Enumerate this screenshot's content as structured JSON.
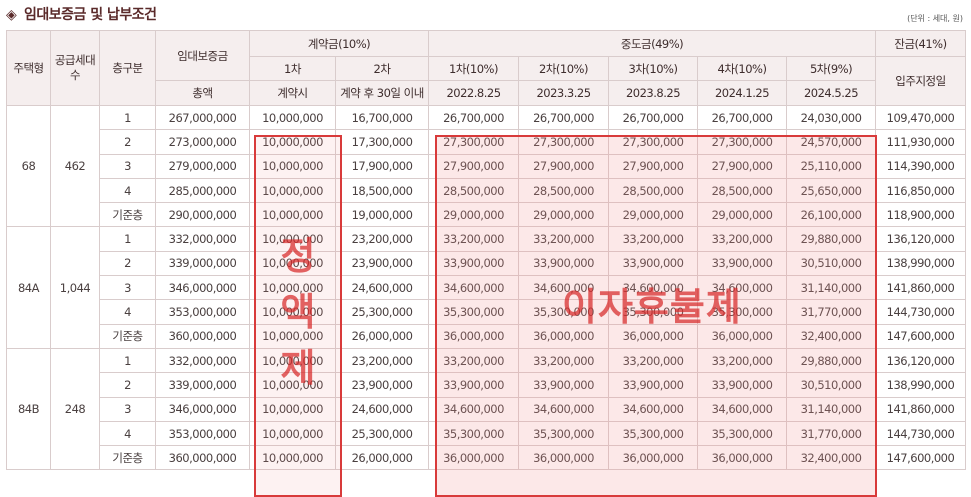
{
  "title": {
    "diamond": "◈",
    "text": "임대보증금 및 납부조건"
  },
  "unit_note": "(단위 : 세대, 원)",
  "header": {
    "type": "주택형",
    "supply": "공급세대수",
    "floor": "층구분",
    "deposit": "임대보증금",
    "deposit_sub": "총액",
    "contract": "계약금(10%)",
    "contract_1": "1차",
    "contract_1_sub": "계약시",
    "contract_2": "2차",
    "contract_2_sub": "계약 후 30일 이내",
    "middle": "중도금(49%)",
    "middle_cols": [
      "1차(10%)",
      "2차(10%)",
      "3차(10%)",
      "4차(10%)",
      "5차(9%)"
    ],
    "middle_dates": [
      "2022.8.25",
      "2023.3.25",
      "2023.8.25",
      "2024.1.25",
      "2024.5.25"
    ],
    "balance": "잔금(41%)",
    "balance_sub": "입주지정일"
  },
  "groups": [
    {
      "type": "68",
      "supply": "462",
      "rows": [
        [
          "1",
          "267,000,000",
          "10,000,000",
          "16,700,000",
          "26,700,000",
          "26,700,000",
          "26,700,000",
          "26,700,000",
          "24,030,000",
          "109,470,000"
        ],
        [
          "2",
          "273,000,000",
          "10,000,000",
          "17,300,000",
          "27,300,000",
          "27,300,000",
          "27,300,000",
          "27,300,000",
          "24,570,000",
          "111,930,000"
        ],
        [
          "3",
          "279,000,000",
          "10,000,000",
          "17,900,000",
          "27,900,000",
          "27,900,000",
          "27,900,000",
          "27,900,000",
          "25,110,000",
          "114,390,000"
        ],
        [
          "4",
          "285,000,000",
          "10,000,000",
          "18,500,000",
          "28,500,000",
          "28,500,000",
          "28,500,000",
          "28,500,000",
          "25,650,000",
          "116,850,000"
        ],
        [
          "기준층",
          "290,000,000",
          "10,000,000",
          "19,000,000",
          "29,000,000",
          "29,000,000",
          "29,000,000",
          "29,000,000",
          "26,100,000",
          "118,900,000"
        ]
      ]
    },
    {
      "type": "84A",
      "supply": "1,044",
      "rows": [
        [
          "1",
          "332,000,000",
          "10,000,000",
          "23,200,000",
          "33,200,000",
          "33,200,000",
          "33,200,000",
          "33,200,000",
          "29,880,000",
          "136,120,000"
        ],
        [
          "2",
          "339,000,000",
          "10,000,000",
          "23,900,000",
          "33,900,000",
          "33,900,000",
          "33,900,000",
          "33,900,000",
          "30,510,000",
          "138,990,000"
        ],
        [
          "3",
          "346,000,000",
          "10,000,000",
          "24,600,000",
          "34,600,000",
          "34,600,000",
          "34,600,000",
          "34,600,000",
          "31,140,000",
          "141,860,000"
        ],
        [
          "4",
          "353,000,000",
          "10,000,000",
          "25,300,000",
          "35,300,000",
          "35,300,000",
          "35,300,000",
          "35,300,000",
          "31,770,000",
          "144,730,000"
        ],
        [
          "기준층",
          "360,000,000",
          "10,000,000",
          "26,000,000",
          "36,000,000",
          "36,000,000",
          "36,000,000",
          "36,000,000",
          "32,400,000",
          "147,600,000"
        ]
      ]
    },
    {
      "type": "84B",
      "supply": "248",
      "rows": [
        [
          "1",
          "332,000,000",
          "10,000,000",
          "23,200,000",
          "33,200,000",
          "33,200,000",
          "33,200,000",
          "33,200,000",
          "29,880,000",
          "136,120,000"
        ],
        [
          "2",
          "339,000,000",
          "10,000,000",
          "23,900,000",
          "33,900,000",
          "33,900,000",
          "33,900,000",
          "33,900,000",
          "30,510,000",
          "138,990,000"
        ],
        [
          "3",
          "346,000,000",
          "10,000,000",
          "24,600,000",
          "34,600,000",
          "34,600,000",
          "34,600,000",
          "34,600,000",
          "31,140,000",
          "141,860,000"
        ],
        [
          "4",
          "353,000,000",
          "10,000,000",
          "25,300,000",
          "35,300,000",
          "35,300,000",
          "35,300,000",
          "35,300,000",
          "31,770,000",
          "144,730,000"
        ],
        [
          "기준층",
          "360,000,000",
          "10,000,000",
          "26,000,000",
          "36,000,000",
          "36,000,000",
          "36,000,000",
          "36,000,000",
          "32,400,000",
          "147,600,000"
        ]
      ]
    }
  ],
  "overlay": {
    "left": "정액제",
    "right": "이자후불제"
  },
  "colors": {
    "title": "#5a2a2a",
    "highlight_border": "#d83a3a",
    "header_bg": "#f5eeee"
  }
}
